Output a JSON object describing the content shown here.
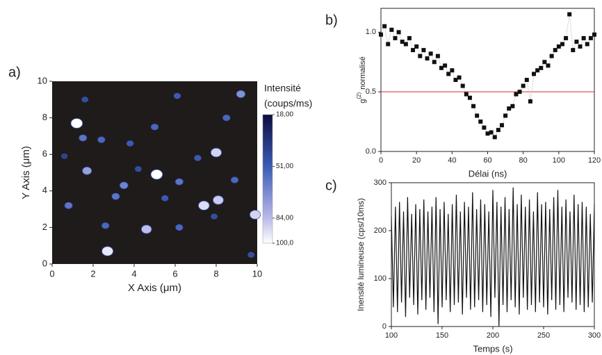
{
  "chart_data": [
    {
      "type": "contour",
      "panel_label": "a)",
      "xlabel": "X Axis (μm)",
      "ylabel": "Y Axis (μm)",
      "colorbar_title": "Intensité",
      "colorbar_unit": "(coups/ms)",
      "xlim": [
        0,
        10
      ],
      "ylim": [
        0,
        10
      ],
      "xticks": [
        0,
        2,
        4,
        6,
        8,
        10
      ],
      "yticks": [
        0,
        2,
        4,
        6,
        8,
        10
      ],
      "clim": [
        18,
        100
      ],
      "cticks": [
        {
          "value": 18,
          "label": "18,00"
        },
        {
          "value": 51,
          "label": "51,00"
        },
        {
          "value": 84,
          "label": "84,00"
        },
        {
          "value": 100,
          "label": "100,0"
        }
      ],
      "x": [
        1.2,
        5.1,
        2.7,
        8.0,
        7.4,
        8.1,
        9.9,
        4.6,
        9.2,
        1.7,
        3.5,
        1.5,
        2.4,
        6.2,
        0.8,
        3.1,
        6.2,
        5.0,
        6.1,
        1.6,
        8.9,
        2.6,
        5.5,
        3.8,
        7.1,
        8.5,
        4.2,
        0.6,
        9.7,
        7.9
      ],
      "y": [
        7.7,
        4.9,
        0.7,
        6.1,
        3.2,
        3.5,
        2.7,
        1.9,
        9.3,
        5.1,
        4.3,
        6.9,
        6.8,
        4.5,
        3.2,
        3.7,
        2.0,
        7.5,
        9.2,
        9.0,
        4.6,
        2.1,
        3.6,
        6.6,
        5.8,
        8.0,
        5.2,
        5.9,
        0.5,
        2.6
      ],
      "values": [
        100,
        100,
        95,
        90,
        92,
        88,
        90,
        85,
        70,
        75,
        65,
        60,
        55,
        60,
        60,
        60,
        55,
        55,
        50,
        45,
        55,
        55,
        50,
        50,
        50,
        55,
        45,
        40,
        45,
        45
      ]
    },
    {
      "type": "scatter",
      "panel_label": "b)",
      "xlabel": "Délai (ns)",
      "ylabel": "g",
      "ylabel_sup": "(2)",
      "ylabel_rest": "normalisé",
      "xlim": [
        0,
        120
      ],
      "ylim": [
        0,
        1.2
      ],
      "xticks": [
        0,
        20,
        40,
        60,
        80,
        100,
        120
      ],
      "yticks": [
        {
          "value": 0,
          "label": "0.0"
        },
        {
          "value": 0.5,
          "label": "0.5"
        },
        {
          "value": 1,
          "label": "1.0"
        }
      ],
      "hline": 0.5,
      "hline_color": "#d62728",
      "color": "#111111",
      "x": [
        0,
        2,
        4,
        6,
        8,
        10,
        12,
        14,
        16,
        18,
        20,
        22,
        24,
        26,
        28,
        30,
        32,
        34,
        36,
        38,
        40,
        42,
        44,
        46,
        48,
        50,
        52,
        54,
        56,
        58,
        60,
        62,
        64,
        66,
        68,
        70,
        72,
        74,
        76,
        78,
        80,
        82,
        84,
        86,
        88,
        90,
        92,
        94,
        96,
        98,
        100,
        102,
        104,
        106,
        108,
        110,
        112,
        114,
        116,
        118,
        120
      ],
      "values": [
        0.98,
        1.05,
        0.9,
        1.02,
        0.95,
        1.0,
        0.92,
        0.9,
        0.95,
        0.85,
        0.88,
        0.8,
        0.85,
        0.78,
        0.82,
        0.75,
        0.8,
        0.7,
        0.72,
        0.65,
        0.68,
        0.6,
        0.62,
        0.55,
        0.48,
        0.45,
        0.38,
        0.3,
        0.25,
        0.2,
        0.15,
        0.16,
        0.12,
        0.18,
        0.22,
        0.3,
        0.36,
        0.38,
        0.48,
        0.5,
        0.55,
        0.6,
        0.42,
        0.65,
        0.68,
        0.7,
        0.75,
        0.72,
        0.8,
        0.85,
        0.88,
        0.9,
        0.95,
        1.15,
        0.85,
        0.92,
        0.88,
        0.95,
        0.9,
        0.95,
        0.98
      ]
    },
    {
      "type": "line",
      "panel_label": "c)",
      "xlabel": "Temps (s)",
      "ylabel": "Inensité lumineuse (cps/10ms)",
      "xlim": [
        100,
        300
      ],
      "ylim": [
        0,
        300
      ],
      "xticks": [
        100,
        150,
        200,
        250,
        300
      ],
      "yticks": [
        0,
        100,
        200,
        300
      ],
      "color": "#111111",
      "x": [
        100,
        102,
        104,
        106,
        108,
        110,
        112,
        114,
        116,
        118,
        120,
        122,
        124,
        126,
        128,
        130,
        132,
        134,
        136,
        138,
        140,
        142,
        144,
        146,
        148,
        150,
        152,
        154,
        156,
        158,
        160,
        162,
        164,
        166,
        168,
        170,
        172,
        174,
        176,
        178,
        180,
        182,
        184,
        186,
        188,
        190,
        192,
        194,
        196,
        198,
        200,
        202,
        204,
        206,
        208,
        210,
        212,
        214,
        216,
        218,
        220,
        222,
        224,
        226,
        228,
        230,
        232,
        234,
        236,
        238,
        240,
        242,
        244,
        246,
        248,
        250,
        252,
        254,
        256,
        258,
        260,
        262,
        264,
        266,
        268,
        270,
        272,
        274,
        276,
        278,
        280,
        282,
        284,
        286,
        288,
        290,
        292,
        294,
        296,
        298,
        300
      ],
      "values": [
        230,
        40,
        250,
        30,
        260,
        50,
        240,
        20,
        270,
        60,
        235,
        45,
        255,
        25,
        245,
        55,
        265,
        35,
        240,
        60,
        250,
        30,
        270,
        5,
        245,
        40,
        260,
        55,
        235,
        30,
        255,
        45,
        275,
        50,
        240,
        25,
        260,
        60,
        250,
        35,
        280,
        40,
        245,
        55,
        265,
        30,
        255,
        45,
        240,
        20,
        285,
        60,
        260,
        0,
        250,
        45,
        270,
        30,
        245,
        55,
        290,
        40,
        255,
        25,
        275,
        60,
        250,
        35,
        265,
        45,
        240,
        30,
        280,
        50,
        255,
        40,
        260,
        25,
        245,
        55,
        270,
        35,
        285,
        45,
        250,
        30,
        265,
        60,
        240,
        50,
        275,
        35,
        255,
        45,
        260,
        30,
        250,
        40,
        235,
        50,
        255
      ]
    }
  ]
}
